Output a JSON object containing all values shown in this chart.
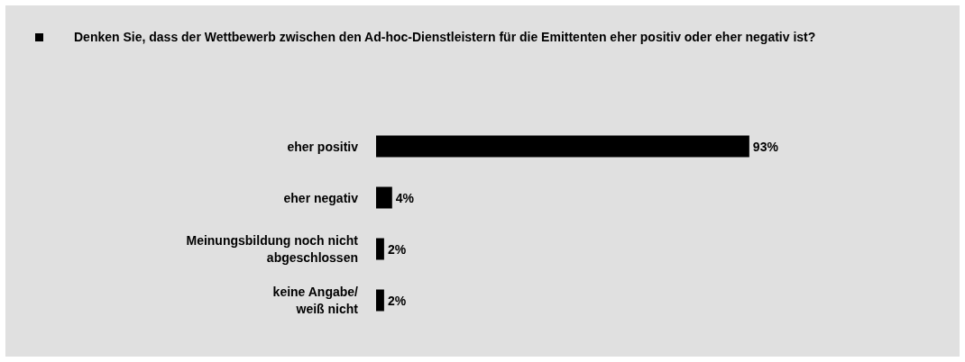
{
  "chart_data": {
    "type": "bar",
    "orientation": "horizontal",
    "title": "Denken Sie, dass der Wettbewerb zwischen den Ad-hoc-Dienstleistern für die Emittenten eher positiv oder eher negativ ist?",
    "categories": [
      "eher positiv",
      "eher negativ",
      "Meinungsbildung noch nicht\nabgeschlossen",
      "keine Angabe/\nweiß nicht"
    ],
    "values": [
      93,
      4,
      2,
      2
    ],
    "color": "#000000",
    "value_labels": [
      "93%",
      "4%",
      "2%",
      "2%"
    ],
    "tick_labels": "y"
  }
}
